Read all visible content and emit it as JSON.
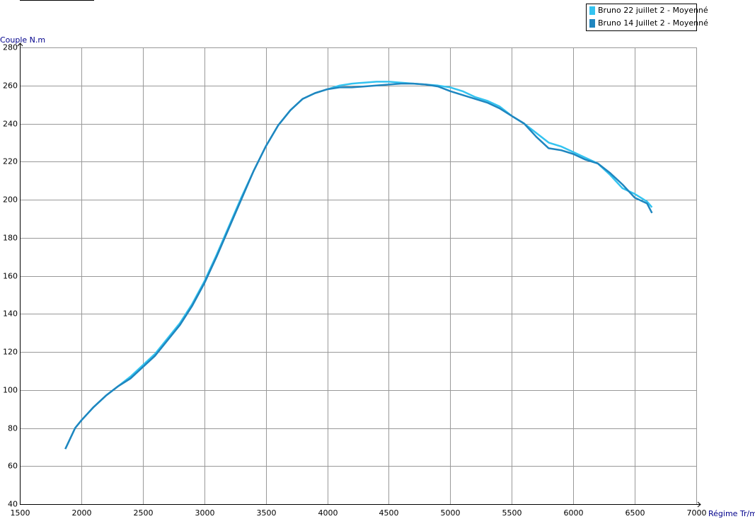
{
  "chart_data": {
    "type": "line",
    "y_label": "Couple N.m",
    "x_label": "Régime Tr/mr",
    "x": [
      1870,
      1950,
      2000,
      2100,
      2200,
      2300,
      2400,
      2500,
      2600,
      2700,
      2800,
      2900,
      3000,
      3100,
      3200,
      3300,
      3400,
      3500,
      3600,
      3700,
      3800,
      3900,
      4000,
      4100,
      4200,
      4300,
      4400,
      4500,
      4600,
      4700,
      4800,
      4900,
      5000,
      5100,
      5200,
      5300,
      5400,
      5500,
      5600,
      5700,
      5800,
      5900,
      6000,
      6100,
      6200,
      6300,
      6400,
      6500,
      6600,
      6640
    ],
    "series": [
      {
        "name": "Bruno 22 juillet 2 - Moyenné",
        "color": "#33c3f0",
        "values": [
          69,
          80,
          84,
          91,
          97,
          102,
          107,
          113,
          119,
          127,
          135,
          145,
          157,
          171,
          186,
          201,
          215,
          228,
          239,
          247,
          253,
          256,
          258,
          260,
          261,
          261.5,
          262,
          262,
          261.5,
          261,
          260.5,
          260,
          259,
          257,
          254,
          252,
          249,
          244,
          240,
          235,
          230,
          228,
          225,
          222,
          219,
          213,
          206,
          203,
          199,
          196
        ]
      },
      {
        "name": "Bruno 14 Juillet 2 - Moyenné",
        "color": "#1f86bf",
        "values": [
          69,
          80,
          84,
          91,
          97,
          102,
          106,
          112,
          118,
          126,
          134,
          144,
          156,
          170,
          185,
          200,
          215,
          228,
          239,
          247,
          253,
          256,
          258,
          259,
          259,
          259.5,
          260,
          260.5,
          261,
          261,
          260.5,
          259.5,
          257,
          255,
          253,
          251,
          248,
          244,
          240,
          233,
          227,
          226,
          224,
          221,
          219,
          214,
          208,
          201,
          198,
          193
        ]
      }
    ],
    "xlim": [
      1500,
      7000
    ],
    "xticks": [
      1500,
      2000,
      2500,
      3000,
      3500,
      4000,
      4500,
      5000,
      5500,
      6000,
      6500,
      7000
    ],
    "ylim": [
      40,
      280
    ],
    "yticks": [
      40,
      60,
      80,
      100,
      120,
      140,
      160,
      180,
      200,
      220,
      240,
      260,
      280
    ],
    "grid": true,
    "legend": "top-right"
  }
}
